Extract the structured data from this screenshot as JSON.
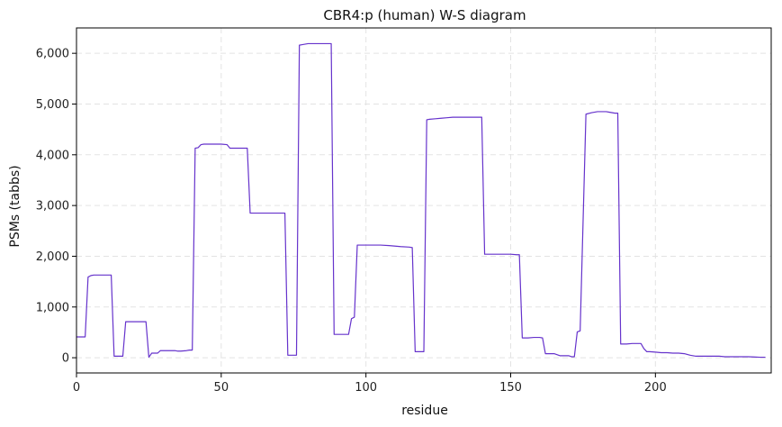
{
  "chart_data": {
    "type": "line",
    "title": "CBR4:p (human) W-S diagram",
    "xlabel": "residue",
    "ylabel": "PSMs (tabbs)",
    "xlim": [
      0,
      240
    ],
    "ylim": [
      -300,
      6500
    ],
    "xticks": [
      0,
      50,
      100,
      150,
      200
    ],
    "yticks": [
      0,
      1000,
      2000,
      3000,
      4000,
      5000,
      6000
    ],
    "ytick_labels": [
      "0",
      "1,000",
      "2,000",
      "3,000",
      "4,000",
      "5,000",
      "6,000"
    ],
    "grid": true,
    "line_color": "#6633cc",
    "series": [
      {
        "x": [
          0,
          2,
          3,
          4,
          5,
          6,
          12,
          13,
          15,
          16,
          17,
          20,
          24,
          25,
          26,
          27,
          28,
          29,
          30,
          33,
          34,
          35,
          36,
          38,
          39,
          40,
          41,
          42,
          43,
          44,
          48,
          50,
          52,
          53,
          54,
          55,
          59,
          60,
          62,
          70,
          72,
          73,
          75,
          76,
          77,
          78,
          80,
          82,
          88,
          89,
          90,
          94,
          95,
          96,
          97,
          98,
          100,
          102,
          105,
          108,
          112,
          115,
          116,
          117,
          118,
          119,
          120,
          121,
          122,
          124,
          126,
          128,
          130,
          135,
          140,
          141,
          142,
          150,
          152,
          153,
          154,
          156,
          158,
          159,
          160,
          161,
          162,
          164,
          165,
          167,
          168,
          170,
          171,
          172,
          173,
          174,
          176,
          178,
          180,
          182,
          183,
          184,
          186,
          187,
          188,
          189,
          190,
          192,
          194,
          195,
          196,
          197,
          198,
          200,
          202,
          204,
          206,
          208,
          210,
          212,
          214,
          216,
          218,
          220,
          222,
          224,
          226,
          228,
          230,
          232,
          234,
          236,
          238
        ],
        "y": [
          410,
          410,
          410,
          1590,
          1620,
          1630,
          1630,
          30,
          30,
          30,
          710,
          710,
          710,
          10,
          90,
          90,
          90,
          140,
          140,
          140,
          140,
          130,
          130,
          140,
          150,
          150,
          4130,
          4140,
          4200,
          4210,
          4210,
          4210,
          4200,
          4130,
          4130,
          4130,
          4130,
          2850,
          2850,
          2850,
          2850,
          50,
          50,
          50,
          6160,
          6170,
          6190,
          6190,
          6190,
          460,
          460,
          460,
          770,
          800,
          2220,
          2220,
          2220,
          2220,
          2220,
          2210,
          2190,
          2180,
          2170,
          120,
          120,
          120,
          120,
          4690,
          4700,
          4710,
          4720,
          4730,
          4740,
          4740,
          4740,
          2040,
          2040,
          2040,
          2030,
          2030,
          390,
          390,
          400,
          400,
          400,
          390,
          80,
          80,
          80,
          40,
          40,
          40,
          20,
          20,
          510,
          530,
          4800,
          4830,
          4850,
          4850,
          4850,
          4840,
          4820,
          4820,
          270,
          270,
          270,
          280,
          280,
          280,
          180,
          120,
          120,
          110,
          100,
          100,
          90,
          90,
          80,
          50,
          30,
          30,
          30,
          30,
          30,
          20,
          20,
          20,
          20,
          20,
          15,
          10,
          10
        ]
      }
    ]
  }
}
